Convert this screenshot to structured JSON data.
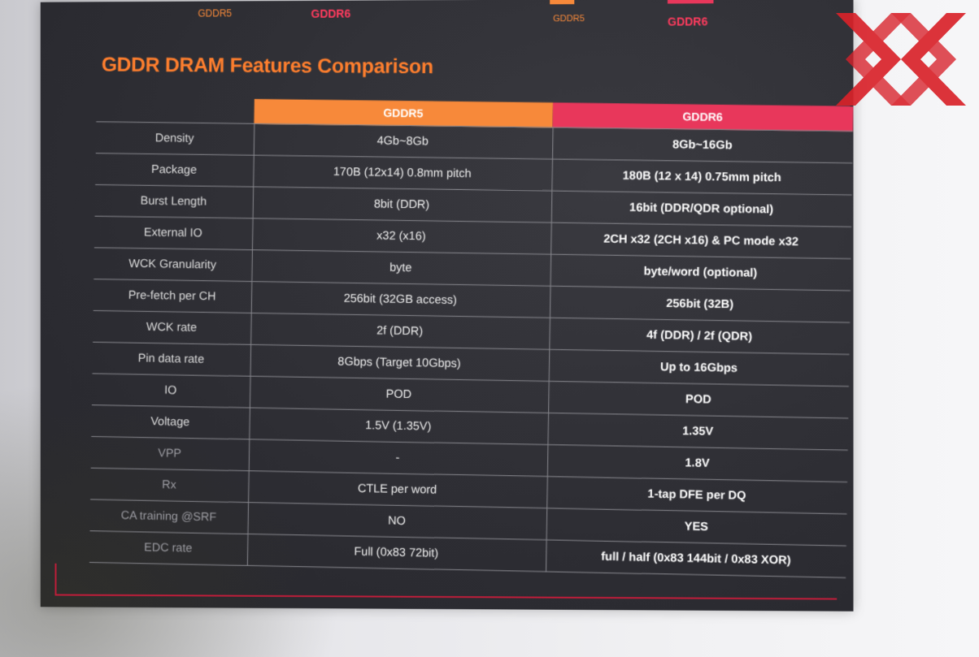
{
  "top_labels": {
    "left_gddr5": "GDDR5",
    "left_gddr6": "GDDR6",
    "right_gddr5": "GDDR5",
    "right_gddr6": "GDDR6"
  },
  "title": "GDDR DRAM Features Comparison",
  "table": {
    "headers": [
      "",
      "GDDR5",
      "GDDR6"
    ],
    "rows": [
      {
        "feature": "Density",
        "gddr5": "4Gb~8Gb",
        "gddr6": "8Gb~16Gb"
      },
      {
        "feature": "Package",
        "gddr5": "170B (12x14) 0.8mm pitch",
        "gddr6": "180B (12 x 14) 0.75mm pitch"
      },
      {
        "feature": "Burst Length",
        "gddr5": "8bit (DDR)",
        "gddr6": "16bit (DDR/QDR optional)"
      },
      {
        "feature": "External IO",
        "gddr5": "x32 (x16)",
        "gddr6": "2CH x32 (2CH x16) & PC mode x32"
      },
      {
        "feature": "WCK Granularity",
        "gddr5": "byte",
        "gddr6": "byte/word (optional)"
      },
      {
        "feature": "Pre-fetch per CH",
        "gddr5": "256bit (32GB access)",
        "gddr6": "256bit (32B)"
      },
      {
        "feature": "WCK rate",
        "gddr5": "2f (DDR)",
        "gddr6": "4f (DDR) / 2f (QDR)"
      },
      {
        "feature": "Pin data rate",
        "gddr5": "8Gbps (Target 10Gbps)",
        "gddr6": "Up to 16Gbps"
      },
      {
        "feature": "IO",
        "gddr5": "POD",
        "gddr6": "POD"
      },
      {
        "feature": "Voltage",
        "gddr5": "1.5V (1.35V)",
        "gddr6": "1.35V"
      },
      {
        "feature": "VPP",
        "gddr5": "-",
        "gddr6": "1.8V"
      },
      {
        "feature": "Rx",
        "gddr5": "CTLE per word",
        "gddr6": "1-tap DFE per DQ"
      },
      {
        "feature": "CA training @SRF",
        "gddr5": "NO",
        "gddr6": "YES"
      },
      {
        "feature": "EDC rate",
        "gddr5": "Full (0x83 72bit)",
        "gddr6": "full / half (0x83 144bit / 0x83 XOR)"
      }
    ]
  },
  "colors": {
    "gddr5_accent": "#f7893a",
    "gddr6_accent": "#e8375b",
    "title": "#ff7f2e",
    "poster_bg": "#2d2d33",
    "logo_red": "#d8222a"
  },
  "logo": {
    "icon": "xx-logo-icon"
  }
}
